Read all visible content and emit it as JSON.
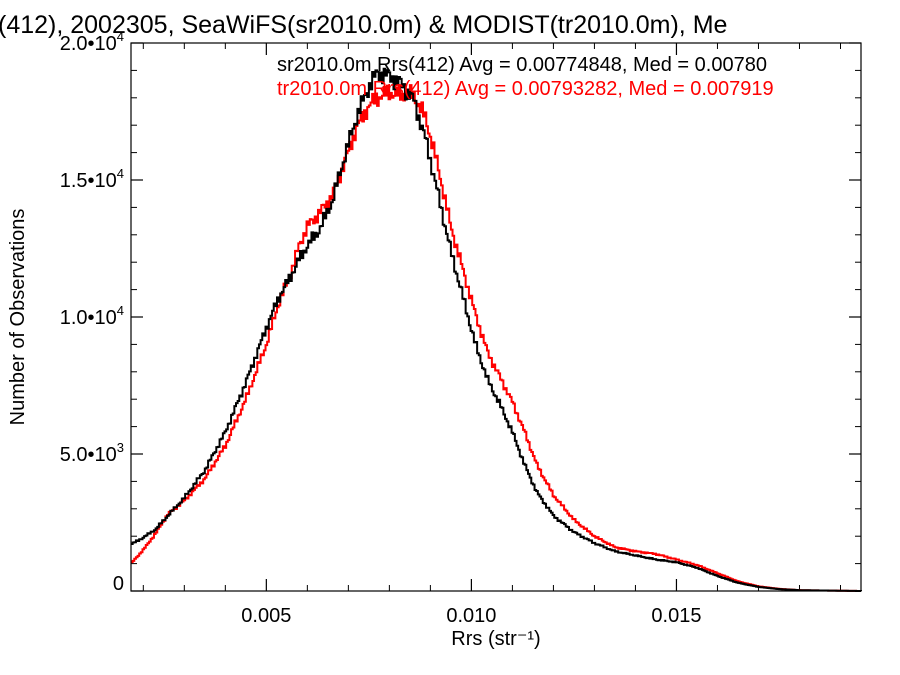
{
  "chart_data": {
    "type": "line",
    "title": "(412), 2002305, SeaWiFS(sr2010.0m) & MODIST(tr2010.0m), Me",
    "xlabel": "Rrs (str⁻¹)",
    "ylabel": "Number of Observations",
    "xlim": [
      0.0017,
      0.0195
    ],
    "ylim": [
      0,
      20000
    ],
    "x_ticks": [
      {
        "value": 0.005,
        "label": "0.005"
      },
      {
        "value": 0.01,
        "label": "0.010"
      },
      {
        "value": 0.015,
        "label": "0.015"
      }
    ],
    "y_ticks": [
      {
        "value": 0,
        "mant": "0",
        "exp": ""
      },
      {
        "value": 5000,
        "mant": "5.0•10",
        "exp": "3"
      },
      {
        "value": 10000,
        "mant": "1.0•10",
        "exp": "4"
      },
      {
        "value": 15000,
        "mant": "1.5•10",
        "exp": "4"
      },
      {
        "value": 20000,
        "mant": "2.0•10",
        "exp": "4"
      }
    ],
    "series": [
      {
        "name": "sr2010.0m Rrs(412) Avg = 0.00774848, Med = 0.00780",
        "color": "#000000",
        "points": [
          [
            0.0017,
            1700
          ],
          [
            0.002,
            1950
          ],
          [
            0.0023,
            2250
          ],
          [
            0.0026,
            2750
          ],
          [
            0.003,
            3400
          ],
          [
            0.0035,
            4400
          ],
          [
            0.004,
            5800
          ],
          [
            0.0045,
            7600
          ],
          [
            0.005,
            9600
          ],
          [
            0.0053,
            10700
          ],
          [
            0.0056,
            11500
          ],
          [
            0.0058,
            12100
          ],
          [
            0.006,
            12600
          ],
          [
            0.0063,
            13200
          ],
          [
            0.0066,
            14200
          ],
          [
            0.0069,
            15800
          ],
          [
            0.0072,
            17300
          ],
          [
            0.0075,
            18400
          ],
          [
            0.0077,
            18900
          ],
          [
            0.008,
            18800
          ],
          [
            0.0083,
            18500
          ],
          [
            0.0086,
            17900
          ],
          [
            0.0089,
            16400
          ],
          [
            0.0092,
            14400
          ],
          [
            0.0095,
            12400
          ],
          [
            0.0098,
            10700
          ],
          [
            0.0101,
            9000
          ],
          [
            0.0104,
            7700
          ],
          [
            0.0107,
            6800
          ],
          [
            0.011,
            5800
          ],
          [
            0.0113,
            4600
          ],
          [
            0.0116,
            3600
          ],
          [
            0.012,
            2750
          ],
          [
            0.0125,
            2150
          ],
          [
            0.013,
            1750
          ],
          [
            0.0135,
            1450
          ],
          [
            0.014,
            1300
          ],
          [
            0.0145,
            1150
          ],
          [
            0.015,
            1050
          ],
          [
            0.0155,
            850
          ],
          [
            0.016,
            550
          ],
          [
            0.0165,
            300
          ],
          [
            0.017,
            150
          ],
          [
            0.0175,
            70
          ],
          [
            0.018,
            30
          ],
          [
            0.019,
            10
          ],
          [
            0.0195,
            0
          ]
        ]
      },
      {
        "name": "tr2010.0m Rrs(412) Avg = 0.00793282, Med = 0.007919",
        "color": "#ff0000",
        "points": [
          [
            0.0017,
            1000
          ],
          [
            0.002,
            1500
          ],
          [
            0.0023,
            2100
          ],
          [
            0.0026,
            2800
          ],
          [
            0.003,
            3300
          ],
          [
            0.0035,
            4100
          ],
          [
            0.004,
            5300
          ],
          [
            0.0045,
            7000
          ],
          [
            0.005,
            9000
          ],
          [
            0.0053,
            10500
          ],
          [
            0.0056,
            11600
          ],
          [
            0.0058,
            12600
          ],
          [
            0.006,
            13300
          ],
          [
            0.0063,
            13800
          ],
          [
            0.0066,
            14400
          ],
          [
            0.0069,
            15600
          ],
          [
            0.0072,
            16900
          ],
          [
            0.0075,
            17700
          ],
          [
            0.0077,
            18000
          ],
          [
            0.008,
            18200
          ],
          [
            0.0083,
            18100
          ],
          [
            0.0086,
            18100
          ],
          [
            0.0089,
            17200
          ],
          [
            0.0092,
            15400
          ],
          [
            0.0095,
            13300
          ],
          [
            0.0098,
            11700
          ],
          [
            0.0101,
            10100
          ],
          [
            0.0104,
            8700
          ],
          [
            0.0107,
            7800
          ],
          [
            0.011,
            6900
          ],
          [
            0.0113,
            5800
          ],
          [
            0.0116,
            4600
          ],
          [
            0.012,
            3500
          ],
          [
            0.0125,
            2600
          ],
          [
            0.013,
            2000
          ],
          [
            0.0135,
            1600
          ],
          [
            0.014,
            1450
          ],
          [
            0.0145,
            1350
          ],
          [
            0.015,
            1150
          ],
          [
            0.0155,
            950
          ],
          [
            0.016,
            650
          ],
          [
            0.0165,
            350
          ],
          [
            0.017,
            170
          ],
          [
            0.0175,
            80
          ],
          [
            0.018,
            30
          ],
          [
            0.019,
            10
          ],
          [
            0.0195,
            0
          ]
        ]
      }
    ]
  }
}
